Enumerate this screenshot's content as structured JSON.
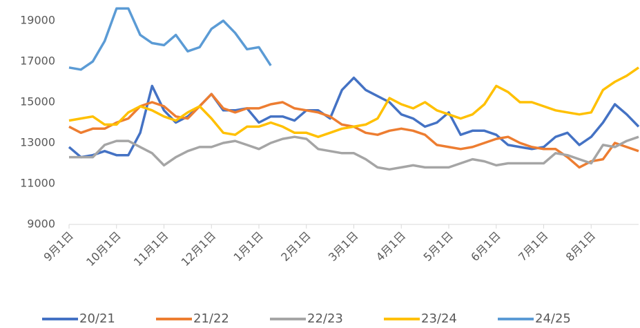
{
  "chart_data": {
    "type": "line",
    "categories": [
      "9月1日",
      null,
      null,
      null,
      "10月1日",
      null,
      null,
      null,
      "11月1日",
      null,
      null,
      null,
      "12月1日",
      null,
      null,
      null,
      "1月1日",
      null,
      null,
      null,
      "2月1日",
      null,
      null,
      null,
      "3月1日",
      null,
      null,
      null,
      "4月1日",
      null,
      null,
      null,
      "5月1日",
      null,
      null,
      null,
      "6月1日",
      null,
      null,
      null,
      "7月1日",
      null,
      null,
      null,
      "8月1日",
      null,
      null,
      null,
      null
    ],
    "ylim": [
      9000,
      19000
    ],
    "yticks": [
      9000,
      11000,
      13000,
      15000,
      17000,
      19000
    ],
    "legend": "bottom",
    "series": [
      {
        "name": "20/21",
        "color": "#4472c4",
        "values": [
          12800,
          12300,
          12400,
          12600,
          12400,
          12400,
          13500,
          15800,
          14600,
          14000,
          14300,
          14800,
          15400,
          14600,
          14600,
          14700,
          14000,
          14300,
          14300,
          14100,
          14600,
          14600,
          14200,
          15600,
          16200,
          15600,
          15300,
          15000,
          14400,
          14200,
          13800,
          14000,
          14500,
          13400,
          13600,
          13600,
          13400,
          12900,
          12800,
          12700,
          12800,
          13300,
          13500,
          12900,
          13300,
          14000,
          14900,
          14400,
          13800
        ]
      },
      {
        "name": "21/22",
        "color": "#ed7d31",
        "values": [
          13800,
          13500,
          13700,
          13700,
          14000,
          14200,
          14800,
          15000,
          14800,
          14300,
          14200,
          14800,
          15400,
          14700,
          14500,
          14700,
          14700,
          14900,
          15000,
          14700,
          14600,
          14500,
          14300,
          13900,
          13800,
          13500,
          13400,
          13600,
          13700,
          13600,
          13400,
          12900,
          12800,
          12700,
          12800,
          13000,
          13200,
          13300,
          13000,
          12800,
          12700,
          12700,
          12300,
          11800,
          12100,
          12200,
          13000,
          12800,
          12600
        ]
      },
      {
        "name": "22/23",
        "color": "#a5a5a5",
        "values": [
          12300,
          12300,
          12300,
          12900,
          13100,
          13100,
          12800,
          12500,
          11900,
          12300,
          12600,
          12800,
          12800,
          13000,
          13100,
          12900,
          12700,
          13000,
          13200,
          13300,
          13200,
          12700,
          12600,
          12500,
          12500,
          12200,
          11800,
          11700,
          11800,
          11900,
          11800,
          11800,
          11800,
          12000,
          12200,
          12100,
          11900,
          12000,
          12000,
          12000,
          12000,
          12500,
          12400,
          12200,
          12000,
          12900,
          12800,
          13100,
          13300
        ]
      },
      {
        "name": "23/24",
        "color": "#ffc000",
        "values": [
          14100,
          14200,
          14300,
          13900,
          13900,
          14500,
          14800,
          14600,
          14300,
          14100,
          14500,
          14800,
          14200,
          13500,
          13400,
          13800,
          13800,
          14000,
          13800,
          13500,
          13500,
          13300,
          13500,
          13700,
          13800,
          13900,
          14200,
          15200,
          14900,
          14700,
          15000,
          14600,
          14400,
          14200,
          14400,
          14900,
          15800,
          15500,
          15000,
          15000,
          14800,
          14600,
          14500,
          14400,
          14500,
          15600,
          16000,
          16300,
          16700
        ]
      },
      {
        "name": "24/25",
        "color": "#5b9bd5",
        "values": [
          16700,
          16600,
          17000,
          18000,
          19600,
          19600,
          18300,
          17900,
          17800,
          18300,
          17500,
          17700,
          18600,
          19000,
          18400,
          17600,
          17700,
          16800,
          null,
          null,
          null,
          null,
          null,
          null,
          null,
          null,
          null,
          null,
          null,
          null,
          null,
          null,
          null,
          null,
          null,
          null,
          null,
          null,
          null,
          null,
          null,
          null,
          null,
          null,
          null,
          null,
          null,
          null,
          null
        ]
      }
    ]
  }
}
